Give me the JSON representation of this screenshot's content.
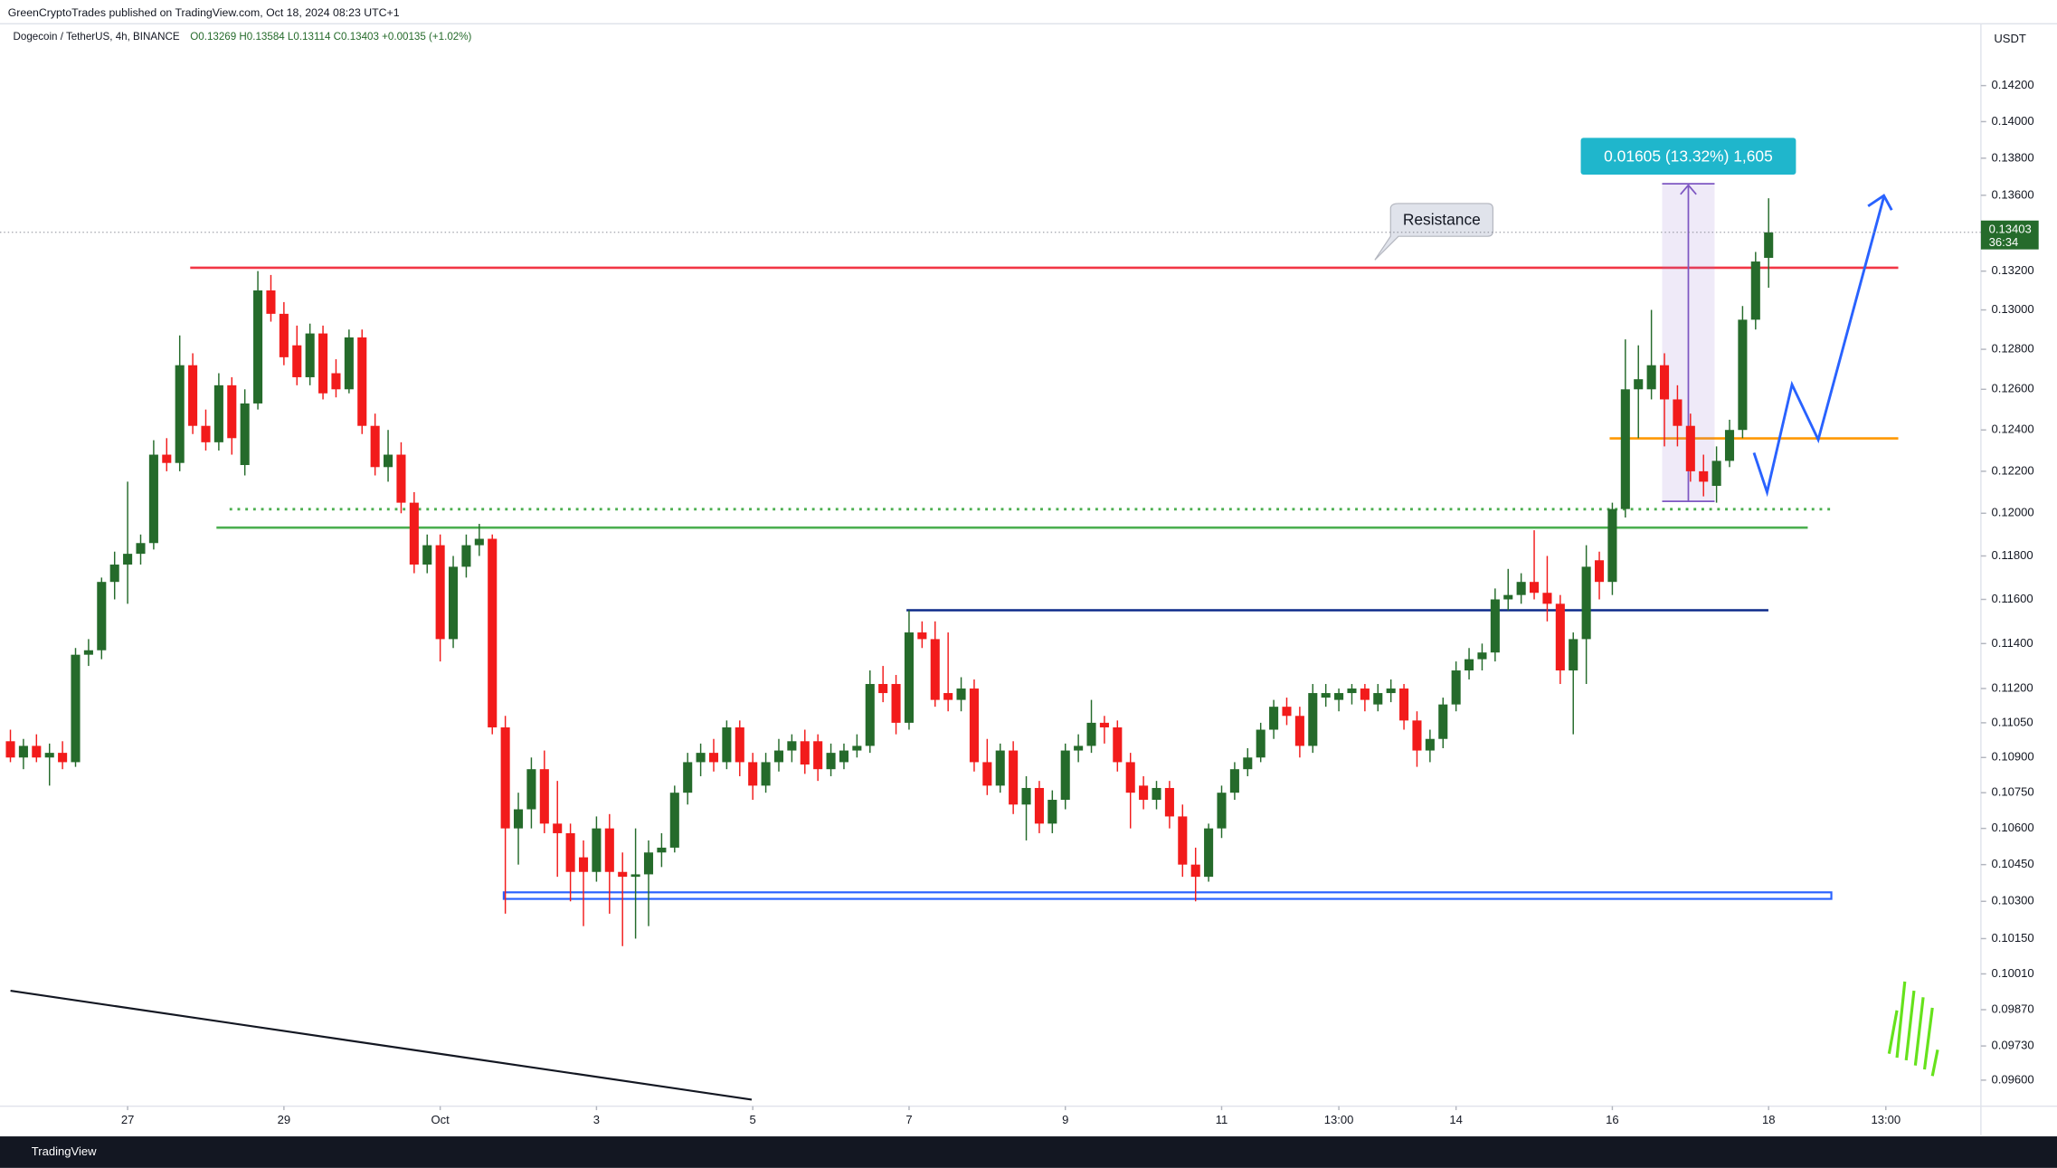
{
  "header": "GreenCryptoTrades published on TradingView.com, Oct 18, 2024 08:23 UTC+1",
  "footer": "TradingView",
  "chart_data": {
    "type": "candlestick",
    "title": "Dogecoin / TetherUS, 4h, BINANCE",
    "legend_text": "O0.13269 H0.13584 L0.13114 C0.13403 +0.00135 (+1.02%)",
    "currency": "USDT",
    "countdown": "36:34",
    "measure_label": "0.01605 (13.32%) 1,605",
    "annotation": "Resistance",
    "up_color": "#256b2b",
    "down_color": "#f21b1b",
    "log_scale": true,
    "xlim": [
      -0.8,
      151.3
    ],
    "ylim": [
      0.09502,
      0.1455
    ],
    "xticks": [
      {
        "value": 9,
        "label": "27"
      },
      {
        "value": 21,
        "label": "29"
      },
      {
        "value": 33,
        "label": "Oct"
      },
      {
        "value": 45,
        "label": "3"
      },
      {
        "value": 57,
        "label": "5"
      },
      {
        "value": 69,
        "label": "7"
      },
      {
        "value": 81,
        "label": "9"
      },
      {
        "value": 93,
        "label": "11"
      },
      {
        "value": 102,
        "label": "13:00"
      },
      {
        "value": 111,
        "label": "14"
      },
      {
        "value": 123,
        "label": "16"
      },
      {
        "value": 135,
        "label": "18"
      },
      {
        "value": 144,
        "label": "13:00"
      }
    ],
    "yticks": [
      {
        "value": 0.142,
        "label": "0.14200"
      },
      {
        "value": 0.14,
        "label": "0.14000"
      },
      {
        "value": 0.138,
        "label": "0.13800"
      },
      {
        "value": 0.136,
        "label": "0.13600"
      },
      {
        "value": 0.132,
        "label": "0.13200"
      },
      {
        "value": 0.13,
        "label": "0.13000"
      },
      {
        "value": 0.128,
        "label": "0.12800"
      },
      {
        "value": 0.126,
        "label": "0.12600"
      },
      {
        "value": 0.124,
        "label": "0.12400"
      },
      {
        "value": 0.122,
        "label": "0.12200"
      },
      {
        "value": 0.12,
        "label": "0.12000"
      },
      {
        "value": 0.118,
        "label": "0.11800"
      },
      {
        "value": 0.116,
        "label": "0.11600"
      },
      {
        "value": 0.114,
        "label": "0.11400"
      },
      {
        "value": 0.112,
        "label": "0.11200"
      },
      {
        "value": 0.1105,
        "label": "0.11050"
      },
      {
        "value": 0.109,
        "label": "0.10900"
      },
      {
        "value": 0.1075,
        "label": "0.10750"
      },
      {
        "value": 0.106,
        "label": "0.10600"
      },
      {
        "value": 0.1045,
        "label": "0.10450"
      },
      {
        "value": 0.103,
        "label": "0.10300"
      },
      {
        "value": 0.1015,
        "label": "0.10150"
      },
      {
        "value": 0.1001,
        "label": "0.10010"
      },
      {
        "value": 0.0987,
        "label": "0.09870"
      },
      {
        "value": 0.0973,
        "label": "0.09730"
      },
      {
        "value": 0.096,
        "label": "0.09600"
      }
    ],
    "candles": [
      [
        0.1097,
        0.1102,
        0.1088,
        0.109
      ],
      [
        0.109,
        0.1098,
        0.1085,
        0.1095
      ],
      [
        0.1095,
        0.11,
        0.1088,
        0.109
      ],
      [
        0.109,
        0.1096,
        0.1078,
        0.1092
      ],
      [
        0.1092,
        0.1097,
        0.1085,
        0.1088
      ],
      [
        0.1088,
        0.1138,
        0.1086,
        0.1135
      ],
      [
        0.1135,
        0.1142,
        0.113,
        0.1137
      ],
      [
        0.1137,
        0.117,
        0.1133,
        0.1168
      ],
      [
        0.1168,
        0.1182,
        0.116,
        0.1176
      ],
      [
        0.1176,
        0.1215,
        0.1158,
        0.1181
      ],
      [
        0.1181,
        0.119,
        0.1176,
        0.1186
      ],
      [
        0.1186,
        0.1235,
        0.1183,
        0.1228
      ],
      [
        0.1228,
        0.1236,
        0.122,
        0.1224
      ],
      [
        0.1224,
        0.1287,
        0.122,
        0.1272
      ],
      [
        0.1272,
        0.1278,
        0.1238,
        0.1242
      ],
      [
        0.1242,
        0.125,
        0.123,
        0.1234
      ],
      [
        0.1234,
        0.1268,
        0.123,
        0.1262
      ],
      [
        0.1262,
        0.1266,
        0.1228,
        0.1236
      ],
      [
        0.1223,
        0.126,
        0.1218,
        0.1253
      ],
      [
        0.1253,
        0.132,
        0.125,
        0.131
      ],
      [
        0.131,
        0.1318,
        0.1294,
        0.1298
      ],
      [
        0.1298,
        0.1304,
        0.1272,
        0.1276
      ],
      [
        0.1282,
        0.1292,
        0.1262,
        0.1266
      ],
      [
        0.1266,
        0.1293,
        0.1262,
        0.1288
      ],
      [
        0.1288,
        0.1292,
        0.1255,
        0.1258
      ],
      [
        0.1268,
        0.1275,
        0.1256,
        0.126
      ],
      [
        0.126,
        0.129,
        0.1258,
        0.1286
      ],
      [
        0.1286,
        0.129,
        0.1238,
        0.1242
      ],
      [
        0.1242,
        0.1248,
        0.1218,
        0.1222
      ],
      [
        0.1222,
        0.124,
        0.1215,
        0.1228
      ],
      [
        0.1228,
        0.1234,
        0.12,
        0.1205
      ],
      [
        0.1205,
        0.121,
        0.1172,
        0.1176
      ],
      [
        0.1176,
        0.119,
        0.1172,
        0.1185
      ],
      [
        0.1185,
        0.119,
        0.1132,
        0.1142
      ],
      [
        0.1142,
        0.118,
        0.1138,
        0.1175
      ],
      [
        0.1175,
        0.119,
        0.117,
        0.1185
      ],
      [
        0.1185,
        0.1195,
        0.118,
        0.1188
      ],
      [
        0.1188,
        0.119,
        0.11,
        0.1103
      ],
      [
        0.1103,
        0.1108,
        0.1025,
        0.106
      ],
      [
        0.106,
        0.1075,
        0.1045,
        0.1068
      ],
      [
        0.1068,
        0.109,
        0.106,
        0.1085
      ],
      [
        0.1085,
        0.1093,
        0.1058,
        0.1062
      ],
      [
        0.1062,
        0.108,
        0.104,
        0.1058
      ],
      [
        0.1058,
        0.1062,
        0.103,
        0.1042
      ],
      [
        0.1048,
        0.1055,
        0.102,
        0.1042
      ],
      [
        0.1042,
        0.1065,
        0.1038,
        0.106
      ],
      [
        0.106,
        0.1066,
        0.1025,
        0.1042
      ],
      [
        0.1042,
        0.105,
        0.1012,
        0.104
      ],
      [
        0.104,
        0.106,
        0.1015,
        0.1041
      ],
      [
        0.1041,
        0.1055,
        0.102,
        0.105
      ],
      [
        0.105,
        0.1058,
        0.1044,
        0.1052
      ],
      [
        0.1052,
        0.1078,
        0.105,
        0.1075
      ],
      [
        0.1075,
        0.1092,
        0.107,
        0.1088
      ],
      [
        0.1088,
        0.1096,
        0.1082,
        0.1092
      ],
      [
        0.1092,
        0.1098,
        0.1084,
        0.1088
      ],
      [
        0.1088,
        0.1106,
        0.1085,
        0.1103
      ],
      [
        0.1103,
        0.1106,
        0.1082,
        0.1088
      ],
      [
        0.1088,
        0.1092,
        0.1072,
        0.1078
      ],
      [
        0.1078,
        0.1092,
        0.1075,
        0.1088
      ],
      [
        0.1088,
        0.1098,
        0.1084,
        0.1093
      ],
      [
        0.1093,
        0.11,
        0.1088,
        0.1097
      ],
      [
        0.1097,
        0.1102,
        0.1083,
        0.1087
      ],
      [
        0.1097,
        0.11,
        0.108,
        0.1085
      ],
      [
        0.1085,
        0.1096,
        0.1082,
        0.1092
      ],
      [
        0.1088,
        0.1096,
        0.1085,
        0.1093
      ],
      [
        0.1093,
        0.11,
        0.109,
        0.1095
      ],
      [
        0.1095,
        0.1128,
        0.1092,
        0.1122
      ],
      [
        0.1122,
        0.113,
        0.1114,
        0.1118
      ],
      [
        0.1122,
        0.1126,
        0.11,
        0.1105
      ],
      [
        0.1105,
        0.1155,
        0.1102,
        0.1145
      ],
      [
        0.1145,
        0.115,
        0.1138,
        0.1142
      ],
      [
        0.1142,
        0.115,
        0.1112,
        0.1115
      ],
      [
        0.1118,
        0.1145,
        0.111,
        0.1115
      ],
      [
        0.1115,
        0.1125,
        0.111,
        0.112
      ],
      [
        0.112,
        0.1124,
        0.1084,
        0.1088
      ],
      [
        0.1088,
        0.1098,
        0.1074,
        0.1078
      ],
      [
        0.1078,
        0.1096,
        0.1075,
        0.1093
      ],
      [
        0.1093,
        0.1097,
        0.1066,
        0.107
      ],
      [
        0.107,
        0.1082,
        0.1055,
        0.1077
      ],
      [
        0.1077,
        0.108,
        0.1058,
        0.1062
      ],
      [
        0.1062,
        0.1076,
        0.1058,
        0.1072
      ],
      [
        0.1072,
        0.1096,
        0.1068,
        0.1093
      ],
      [
        0.1093,
        0.11,
        0.1088,
        0.1095
      ],
      [
        0.1095,
        0.1115,
        0.1092,
        0.1105
      ],
      [
        0.1105,
        0.1108,
        0.1096,
        0.1103
      ],
      [
        0.1103,
        0.1106,
        0.1084,
        0.1088
      ],
      [
        0.1088,
        0.1092,
        0.106,
        0.1075
      ],
      [
        0.1078,
        0.1082,
        0.1068,
        0.1072
      ],
      [
        0.1072,
        0.108,
        0.1068,
        0.1077
      ],
      [
        0.1077,
        0.108,
        0.106,
        0.1065
      ],
      [
        0.1065,
        0.107,
        0.104,
        0.1045
      ],
      [
        0.1045,
        0.1052,
        0.103,
        0.104
      ],
      [
        0.104,
        0.1062,
        0.1038,
        0.106
      ],
      [
        0.106,
        0.1078,
        0.1056,
        0.1075
      ],
      [
        0.1075,
        0.1088,
        0.1072,
        0.1085
      ],
      [
        0.1085,
        0.1094,
        0.1082,
        0.109
      ],
      [
        0.109,
        0.1105,
        0.1088,
        0.1102
      ],
      [
        0.1102,
        0.1115,
        0.1098,
        0.1112
      ],
      [
        0.1112,
        0.1116,
        0.1104,
        0.1108
      ],
      [
        0.1108,
        0.1112,
        0.109,
        0.1095
      ],
      [
        0.1095,
        0.1122,
        0.1092,
        0.1118
      ],
      [
        0.1116,
        0.1122,
        0.1112,
        0.1118
      ],
      [
        0.1115,
        0.112,
        0.111,
        0.1118
      ],
      [
        0.1118,
        0.1122,
        0.1113,
        0.112
      ],
      [
        0.112,
        0.1122,
        0.111,
        0.1115
      ],
      [
        0.1113,
        0.1122,
        0.111,
        0.1118
      ],
      [
        0.1118,
        0.1124,
        0.1114,
        0.112
      ],
      [
        0.112,
        0.1122,
        0.1102,
        0.1106
      ],
      [
        0.1106,
        0.111,
        0.1086,
        0.1093
      ],
      [
        0.1093,
        0.1102,
        0.1088,
        0.1098
      ],
      [
        0.1098,
        0.1116,
        0.1094,
        0.1113
      ],
      [
        0.1113,
        0.1132,
        0.111,
        0.1128
      ],
      [
        0.1128,
        0.1138,
        0.1124,
        0.1133
      ],
      [
        0.1133,
        0.114,
        0.1128,
        0.1136
      ],
      [
        0.1136,
        0.1165,
        0.1132,
        0.116
      ],
      [
        0.116,
        0.1174,
        0.1155,
        0.1162
      ],
      [
        0.1162,
        0.1172,
        0.1158,
        0.1168
      ],
      [
        0.1168,
        0.1192,
        0.116,
        0.1163
      ],
      [
        0.1163,
        0.118,
        0.115,
        0.1158
      ],
      [
        0.1158,
        0.1162,
        0.1122,
        0.1128
      ],
      [
        0.1128,
        0.1145,
        0.11,
        0.1142
      ],
      [
        0.1142,
        0.1185,
        0.1122,
        0.1175
      ],
      [
        0.1178,
        0.1182,
        0.116,
        0.1168
      ],
      [
        0.1168,
        0.1205,
        0.1162,
        0.1202
      ],
      [
        0.1202,
        0.1285,
        0.1198,
        0.126
      ],
      [
        0.126,
        0.1282,
        0.1236,
        0.1265
      ],
      [
        0.126,
        0.13,
        0.1255,
        0.1272
      ],
      [
        0.1272,
        0.1278,
        0.1232,
        0.1255
      ],
      [
        0.1255,
        0.1262,
        0.1232,
        0.1242
      ],
      [
        0.1242,
        0.1248,
        0.1215,
        0.122
      ],
      [
        0.122,
        0.1228,
        0.1208,
        0.1215
      ],
      [
        0.1213,
        0.1232,
        0.1205,
        0.1225
      ],
      [
        0.1225,
        0.1245,
        0.1222,
        0.124
      ],
      [
        0.124,
        0.1302,
        0.1236,
        0.1295
      ],
      [
        0.1295,
        0.133,
        0.129,
        0.1325
      ],
      [
        0.13269,
        0.13584,
        0.13114,
        0.13403
      ]
    ]
  }
}
